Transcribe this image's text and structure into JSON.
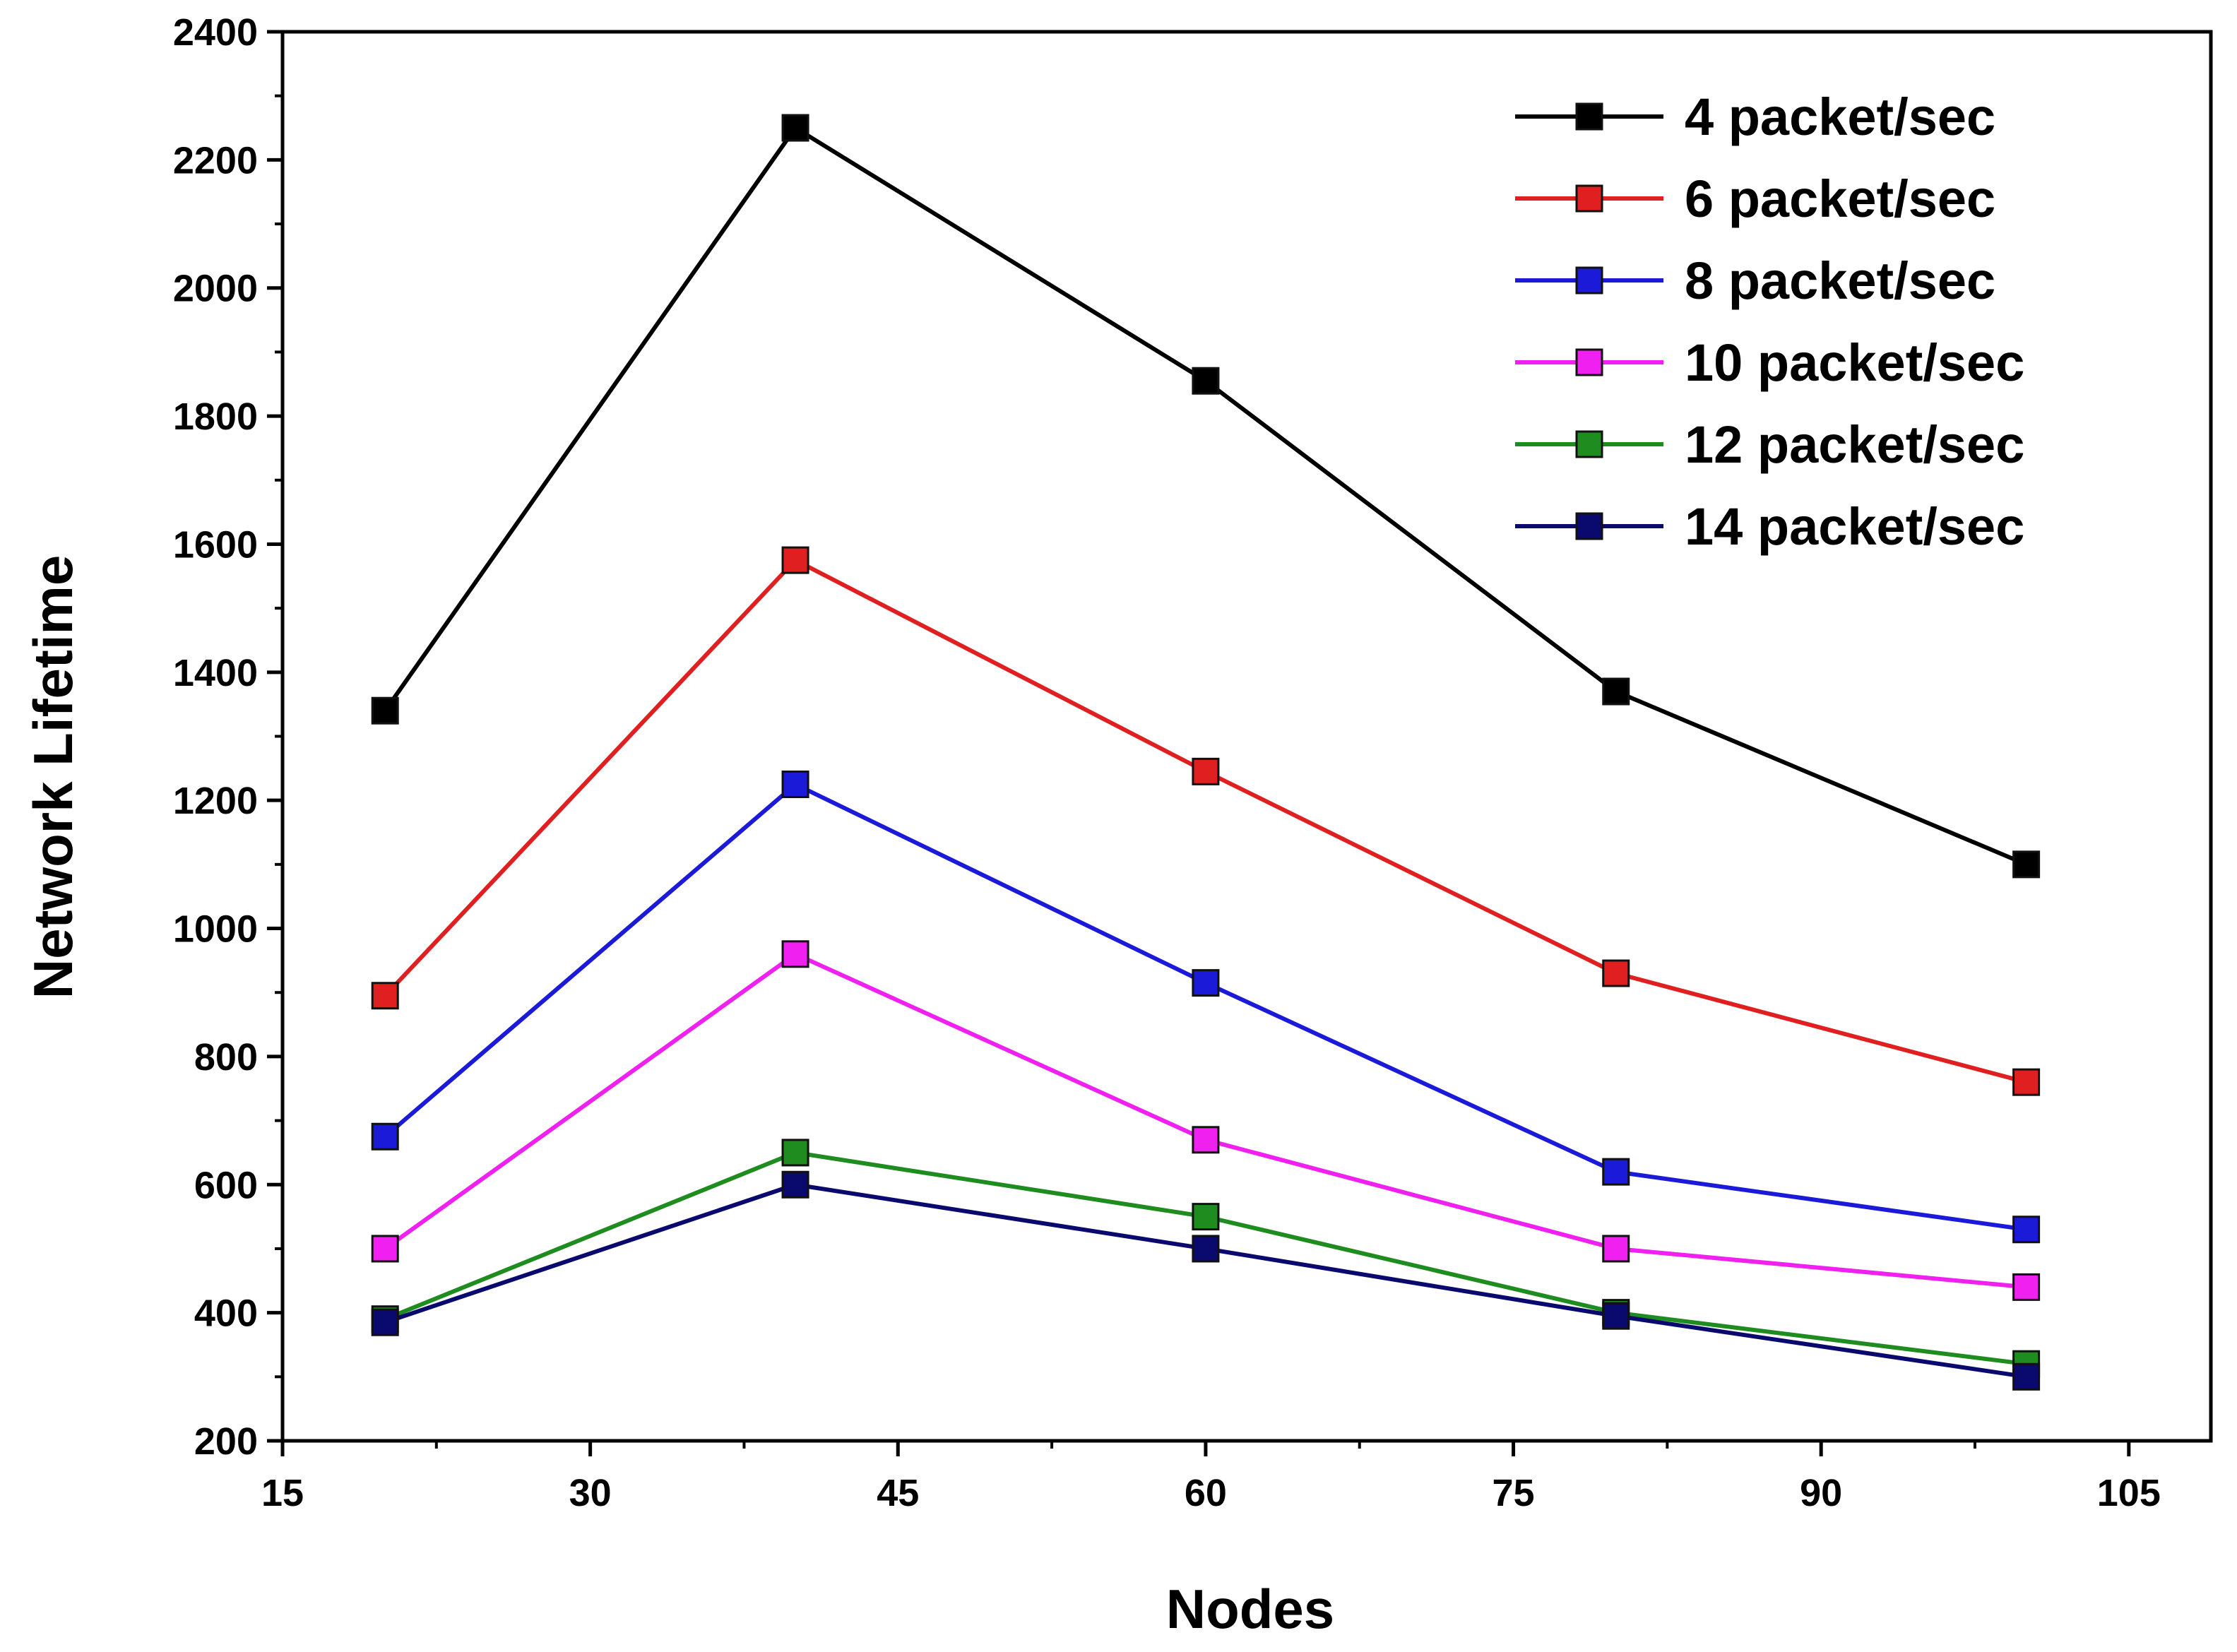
{
  "chart_data": {
    "type": "line",
    "title": "",
    "xlabel": "Nodes",
    "ylabel": "Network Lifetime",
    "xlim": [
      15,
      109
    ],
    "ylim": [
      200,
      2400
    ],
    "xticks": [
      15,
      30,
      45,
      60,
      75,
      90,
      105
    ],
    "yticks": [
      200,
      400,
      600,
      800,
      1000,
      1200,
      1400,
      1600,
      1800,
      2000,
      2200,
      2400
    ],
    "x": [
      20,
      40,
      60,
      80,
      100
    ],
    "legend_position": "top-right",
    "grid": false,
    "series": [
      {
        "name": "4 packet/sec",
        "color": "#000000",
        "values": [
          1340,
          2250,
          1855,
          1370,
          1100
        ]
      },
      {
        "name": "6 packet/sec",
        "color": "#e02020",
        "values": [
          895,
          1575,
          1245,
          930,
          760
        ]
      },
      {
        "name": "8 packet/sec",
        "color": "#1a1ad8",
        "values": [
          675,
          1225,
          915,
          620,
          530
        ]
      },
      {
        "name": "10 packet/sec",
        "color": "#f020f0",
        "values": [
          500,
          960,
          670,
          500,
          440
        ]
      },
      {
        "name": "12 packet/sec",
        "color": "#1e8c1e",
        "values": [
          390,
          650,
          550,
          400,
          320
        ]
      },
      {
        "name": "14 packet/sec",
        "color": "#0a0a6e",
        "values": [
          385,
          600,
          500,
          395,
          300
        ]
      }
    ]
  }
}
